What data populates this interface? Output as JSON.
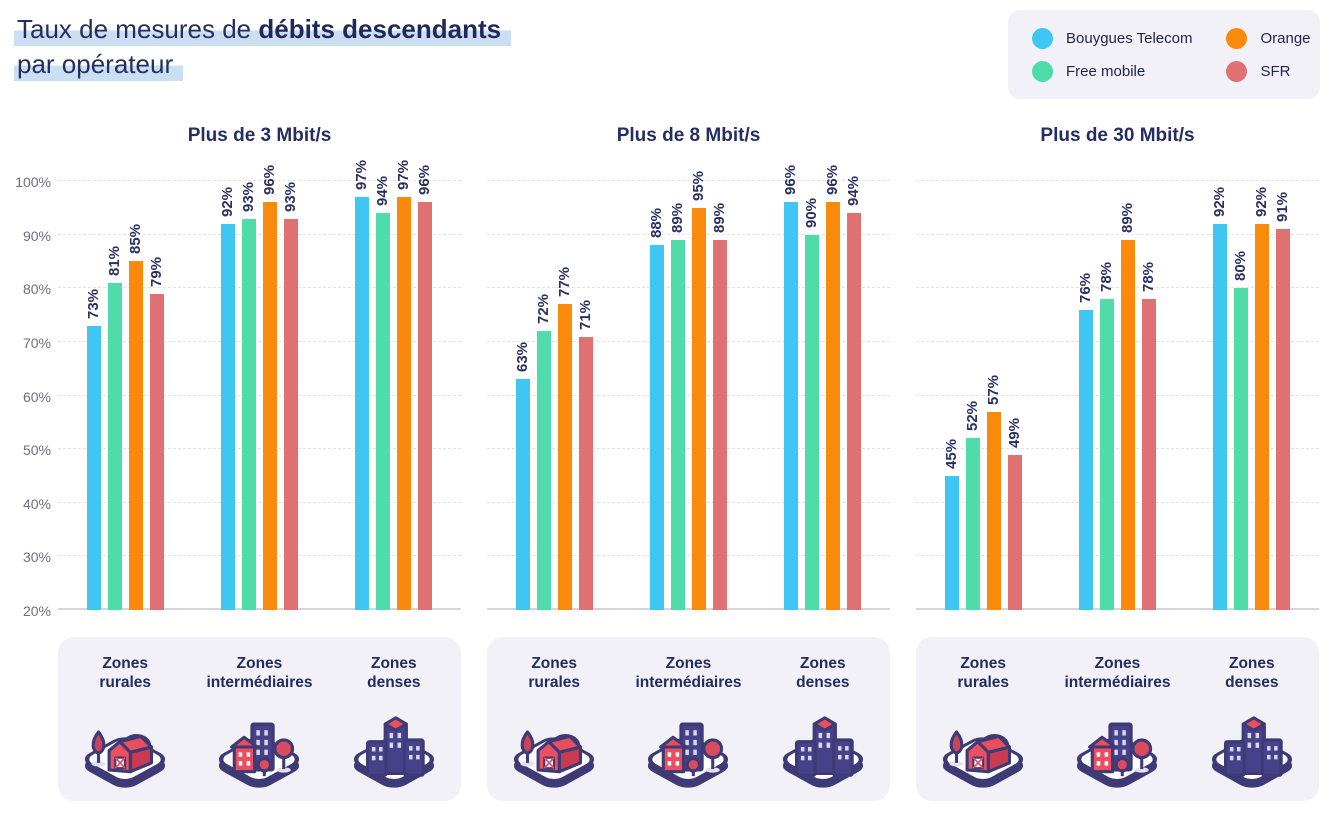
{
  "page": {
    "title_line1_regular": "Taux de mesures de ",
    "title_line1_bold": "débits descendants",
    "title_line2": "par opérateur"
  },
  "legend": {
    "items": [
      {
        "label": "Bouygues Telecom",
        "color": "#3FC6F3"
      },
      {
        "label": "Free mobile",
        "color": "#50DBAA"
      },
      {
        "label": "Orange",
        "color": "#FA8A0B"
      },
      {
        "label": "SFR",
        "color": "#E07173"
      }
    ]
  },
  "y_axis": {
    "min": 20,
    "max": 100,
    "step": 10,
    "ticks": [
      "100%",
      "90%",
      "80%",
      "70%",
      "60%",
      "50%",
      "40%",
      "30%",
      "20%"
    ]
  },
  "zones": [
    {
      "line1": "Zones",
      "line2": "rurales",
      "icon": "farm-icon"
    },
    {
      "line1": "Zones",
      "line2": "intermédiaires",
      "icon": "town-icon"
    },
    {
      "line1": "Zones",
      "line2": "denses",
      "icon": "city-icon"
    }
  ],
  "chart_data": [
    {
      "type": "bar",
      "title": "Plus de 3 Mbit/s",
      "categories": [
        "Zones rurales",
        "Zones intermédiaires",
        "Zones denses"
      ],
      "series": [
        {
          "name": "Bouygues Telecom",
          "color": "#3FC6F3",
          "values": [
            73,
            92,
            97
          ]
        },
        {
          "name": "Free mobile",
          "color": "#50DBAA",
          "values": [
            81,
            93,
            94
          ]
        },
        {
          "name": "Orange",
          "color": "#FA8A0B",
          "values": [
            85,
            96,
            97
          ]
        },
        {
          "name": "SFR",
          "color": "#E07173",
          "values": [
            79,
            93,
            96
          ]
        }
      ],
      "xlabel": "",
      "ylabel": "",
      "ylim": [
        20,
        100
      ],
      "grid": "dashed-horizontal",
      "value_suffix": "%"
    },
    {
      "type": "bar",
      "title": "Plus de 8 Mbit/s",
      "categories": [
        "Zones rurales",
        "Zones intermédiaires",
        "Zones denses"
      ],
      "series": [
        {
          "name": "Bouygues Telecom",
          "color": "#3FC6F3",
          "values": [
            63,
            88,
            96
          ]
        },
        {
          "name": "Free mobile",
          "color": "#50DBAA",
          "values": [
            72,
            89,
            90
          ]
        },
        {
          "name": "Orange",
          "color": "#FA8A0B",
          "values": [
            77,
            95,
            96
          ]
        },
        {
          "name": "SFR",
          "color": "#E07173",
          "values": [
            71,
            89,
            94
          ]
        }
      ],
      "xlabel": "",
      "ylabel": "",
      "ylim": [
        20,
        100
      ],
      "grid": "dashed-horizontal",
      "value_suffix": "%"
    },
    {
      "type": "bar",
      "title": "Plus de 30 Mbit/s",
      "categories": [
        "Zones rurales",
        "Zones intermédiaires",
        "Zones denses"
      ],
      "series": [
        {
          "name": "Bouygues Telecom",
          "color": "#3FC6F3",
          "values": [
            45,
            76,
            92
          ]
        },
        {
          "name": "Free mobile",
          "color": "#50DBAA",
          "values": [
            52,
            78,
            80
          ]
        },
        {
          "name": "Orange",
          "color": "#FA8A0B",
          "values": [
            57,
            89,
            92
          ]
        },
        {
          "name": "SFR",
          "color": "#E07173",
          "values": [
            49,
            78,
            91
          ]
        }
      ],
      "xlabel": "",
      "ylabel": "",
      "ylim": [
        20,
        100
      ],
      "grid": "dashed-horizontal",
      "value_suffix": "%"
    }
  ]
}
